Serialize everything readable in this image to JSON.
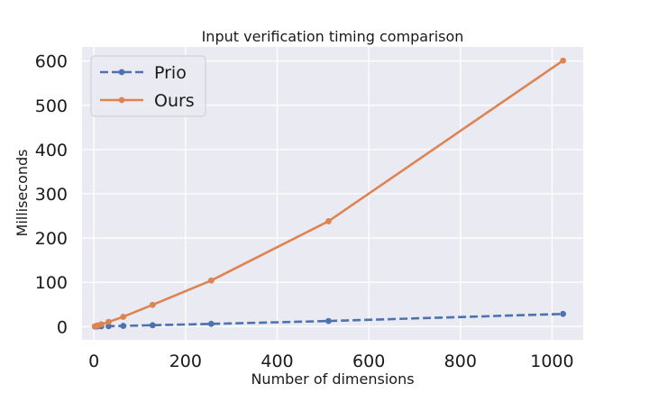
{
  "chart_data": {
    "type": "line",
    "title": "Input verification timing comparison",
    "xlabel": "Number of dimensions",
    "ylabel": "Milliseconds",
    "xlim": [
      -26,
      1068
    ],
    "ylim": [
      -30,
      632
    ],
    "xticks": [
      0,
      200,
      400,
      600,
      800,
      1000
    ],
    "yticks": [
      0,
      100,
      200,
      300,
      400,
      500,
      600
    ],
    "grid": true,
    "legend": "top-left",
    "background": "#eaeaf2",
    "series": [
      {
        "name": "Prio",
        "color": "#4c72b0",
        "dash": "dashed",
        "x": [
          2,
          4,
          8,
          16,
          32,
          64,
          128,
          256,
          512,
          1024
        ],
        "y": [
          0.1,
          0.2,
          0.3,
          0.5,
          0.8,
          1.5,
          3,
          6,
          12.5,
          28.5
        ]
      },
      {
        "name": "Ours",
        "color": "#dd8452",
        "dash": "solid",
        "x": [
          2,
          4,
          8,
          16,
          32,
          64,
          128,
          256,
          512,
          1024
        ],
        "y": [
          0.5,
          1.2,
          2.5,
          5,
          10.5,
          22,
          49,
          104,
          238,
          601
        ]
      }
    ]
  }
}
